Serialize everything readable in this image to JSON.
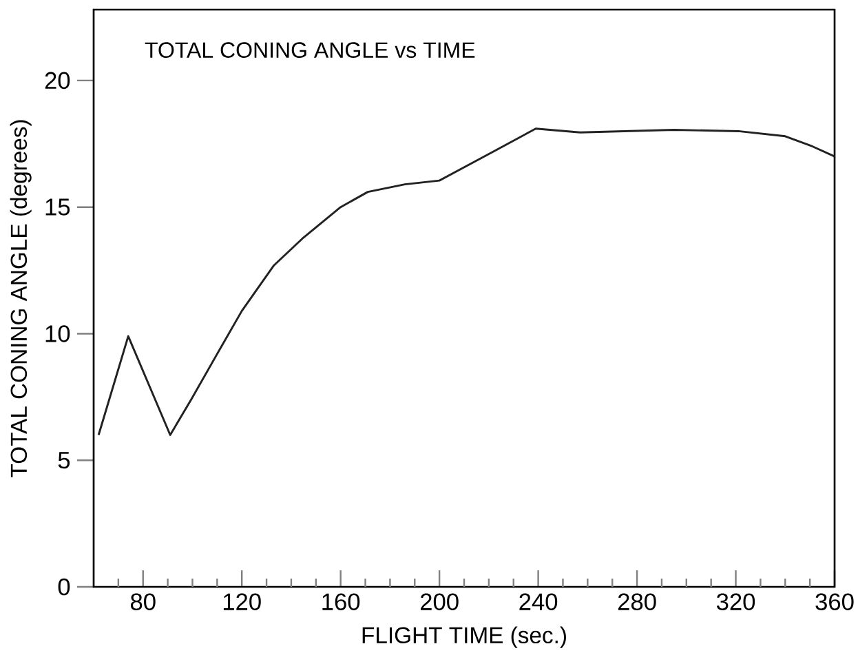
{
  "chart_data": {
    "type": "line",
    "title": "TOTAL CONING ANGLE vs TIME",
    "xlabel": "FLIGHT TIME (sec.)",
    "ylabel": "TOTAL CONING ANGLE (degrees)",
    "x": [
      62,
      74,
      91,
      99.5,
      110,
      120,
      133,
      145,
      160,
      171,
      186,
      200,
      222,
      239,
      257,
      295,
      321,
      340,
      351,
      360
    ],
    "series": [
      {
        "color": "#222222",
        "values": [
          6.0,
          9.9,
          6.0,
          7.4,
          9.2,
          10.9,
          12.7,
          13.8,
          15.0,
          15.6,
          15.9,
          16.05,
          17.2,
          18.1,
          17.95,
          18.05,
          18.0,
          17.8,
          17.4,
          17.0
        ]
      }
    ],
    "xlim": [
      60,
      360
    ],
    "ylim": [
      0,
      22.8
    ],
    "xticks": [
      {
        "value": 70,
        "label": null
      },
      80,
      {
        "value": 90,
        "label": null
      },
      {
        "value": 100,
        "label": null
      },
      {
        "value": 110,
        "label": null
      },
      120,
      {
        "value": 130,
        "label": null
      },
      {
        "value": 140,
        "label": null
      },
      {
        "value": 150,
        "label": null
      },
      160,
      {
        "value": 170,
        "label": null
      },
      {
        "value": 180,
        "label": null
      },
      {
        "value": 190,
        "label": null
      },
      200,
      {
        "value": 210,
        "label": null
      },
      {
        "value": 220,
        "label": null
      },
      {
        "value": 230,
        "label": null
      },
      240,
      {
        "value": 250,
        "label": null
      },
      {
        "value": 260,
        "label": null
      },
      {
        "value": 270,
        "label": null
      },
      280,
      {
        "value": 290,
        "label": null
      },
      {
        "value": 300,
        "label": null
      },
      {
        "value": 310,
        "label": null
      },
      320,
      {
        "value": 330,
        "label": null
      },
      {
        "value": 340,
        "label": null
      },
      {
        "value": 350,
        "label": null
      },
      360
    ],
    "yticks": [
      0,
      5,
      10,
      15,
      20
    ],
    "grid": false,
    "legend": false,
    "marker": "none",
    "line_style": "solid"
  }
}
